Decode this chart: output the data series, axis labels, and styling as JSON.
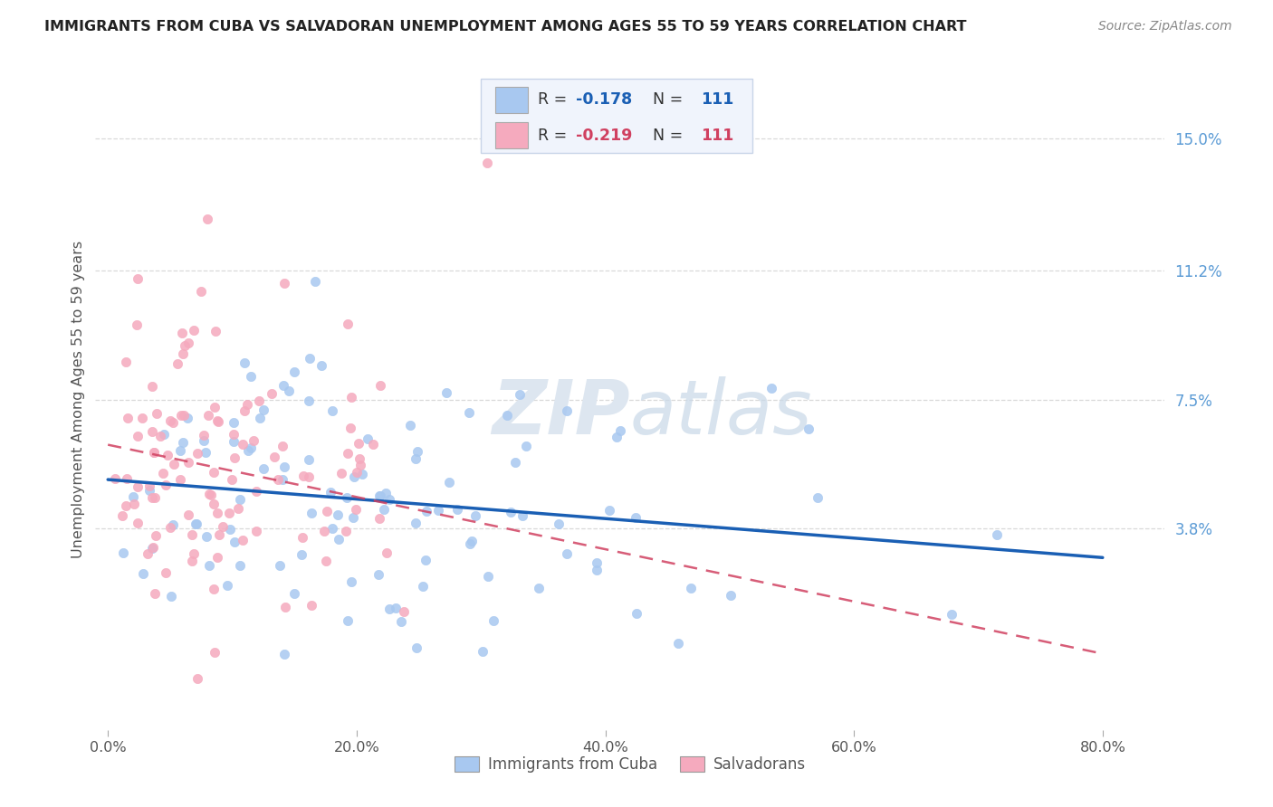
{
  "title": "IMMIGRANTS FROM CUBA VS SALVADORAN UNEMPLOYMENT AMONG AGES 55 TO 59 YEARS CORRELATION CHART",
  "source": "Source: ZipAtlas.com",
  "ylabel": "Unemployment Among Ages 55 to 59 years",
  "xlabel_ticks": [
    "0.0%",
    "20.0%",
    "40.0%",
    "60.0%",
    "80.0%"
  ],
  "xlabel_vals": [
    0.0,
    0.2,
    0.4,
    0.6,
    0.8
  ],
  "ylabel_ticks": [
    "3.8%",
    "7.5%",
    "11.2%",
    "15.0%"
  ],
  "ylabel_vals": [
    0.038,
    0.075,
    0.112,
    0.15
  ],
  "right_label_15": "15.0%",
  "right_label_112": "11.2%",
  "right_label_75": "7.5%",
  "right_label_38": "3.8%",
  "xlim": [
    -0.01,
    0.85
  ],
  "ylim": [
    -0.02,
    0.17
  ],
  "r_cuba": -0.178,
  "r_salvador": -0.219,
  "n_cuba": 111,
  "n_salvador": 111,
  "color_cuba": "#a8c8f0",
  "color_salvador": "#f5aabe",
  "line_color_cuba": "#1a5fb4",
  "line_color_salvador": "#d04060",
  "background_color": "#ffffff",
  "grid_color": "#d0d0d0",
  "title_color": "#222222",
  "right_label_color": "#5b9bd5",
  "watermark_color": "#dde6f0",
  "legend_bg": "#f0f4fc",
  "legend_border": "#c8d4e8",
  "intercept_cuba": 0.052,
  "slope_cuba": -0.028,
  "intercept_salv": 0.062,
  "slope_salv": -0.075
}
